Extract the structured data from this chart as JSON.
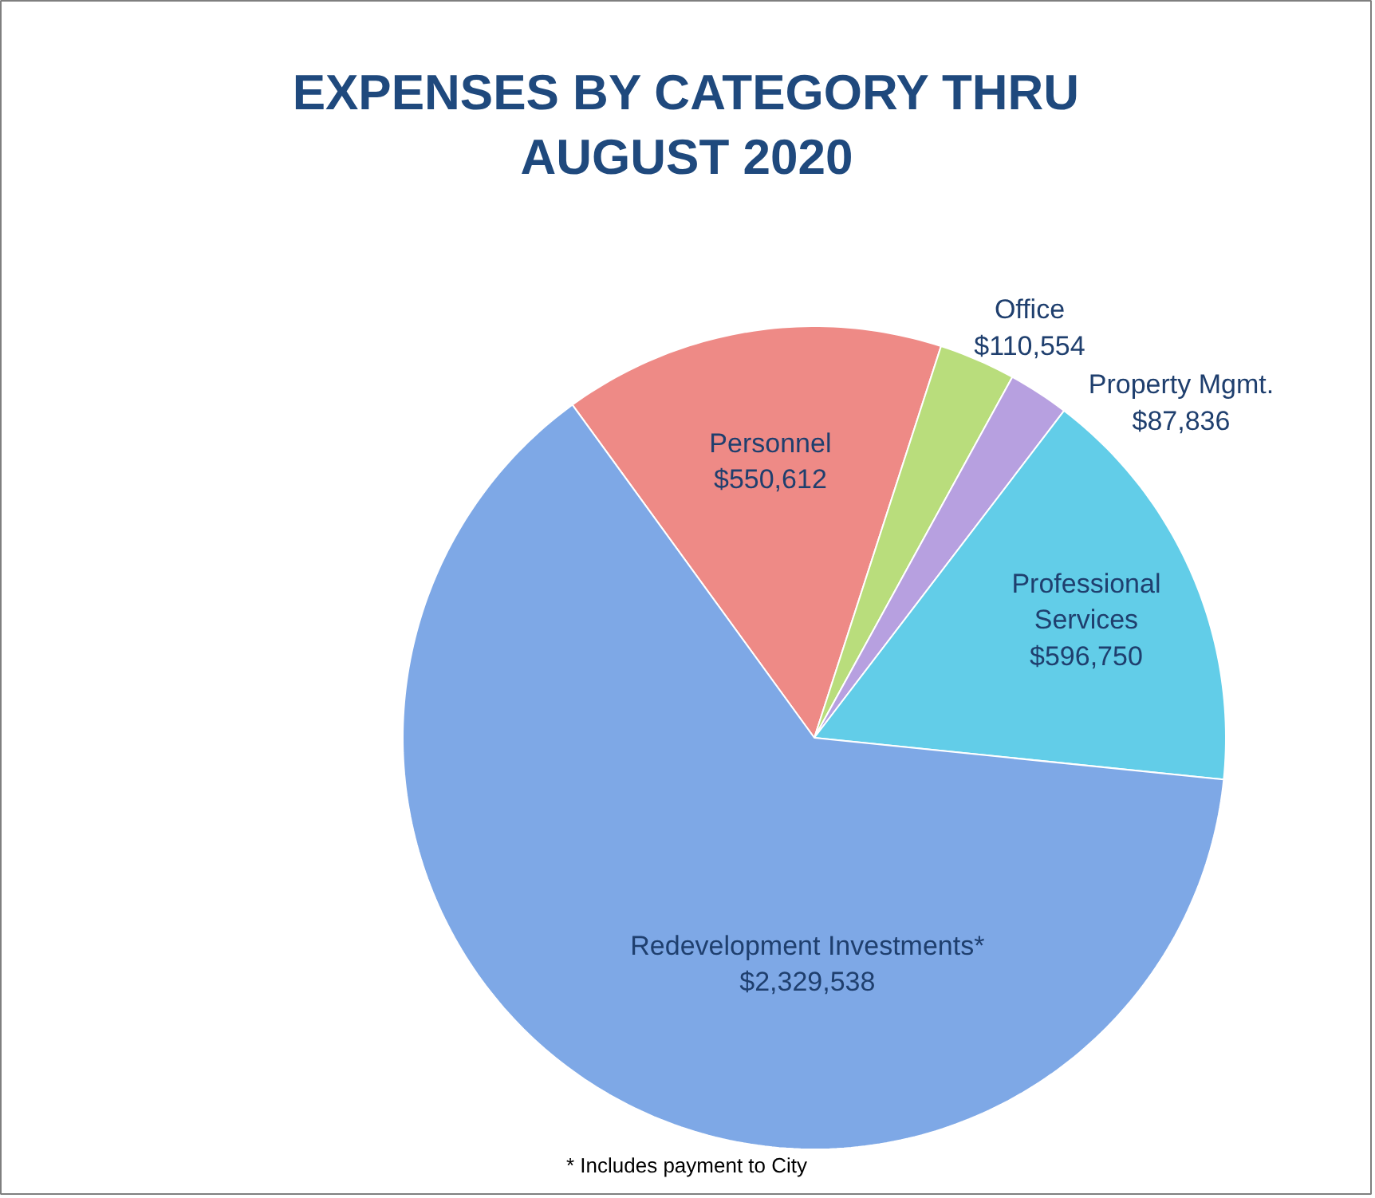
{
  "chart_data": {
    "type": "pie",
    "title": "EXPENSES BY CATEGORY THRU AUGUST 2020",
    "categories": [
      "Personnel",
      "Office",
      "Property Mgmt.",
      "Professional Services",
      "Redevelopment Investments*"
    ],
    "values": [
      550612,
      110554,
      87836,
      596750,
      2329538
    ],
    "value_labels": [
      "$550,612",
      "$110,554",
      "$87,836",
      "$596,750",
      "$2,329,538"
    ],
    "colors": [
      "#ee8a86",
      "#b9dd7c",
      "#b7a0e0",
      "#62cde8",
      "#7ea8e6"
    ],
    "annotations": [
      "* Includes payment to City"
    ]
  }
}
